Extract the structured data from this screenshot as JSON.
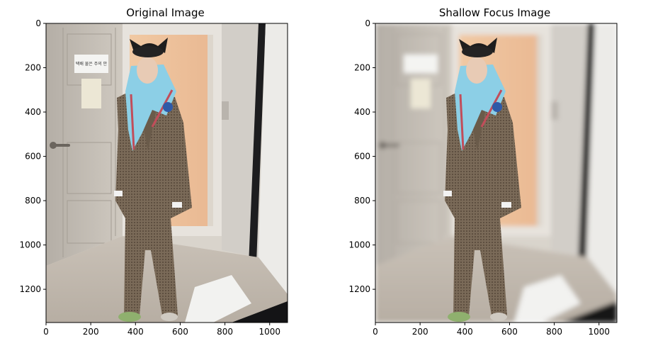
{
  "chart_data": [
    {
      "type": "image",
      "title": "Original Image",
      "xticks": [
        0,
        200,
        400,
        600,
        800,
        1000
      ],
      "yticks": [
        0,
        200,
        400,
        600,
        800,
        1000,
        1200
      ],
      "xlim": [
        0,
        1080
      ],
      "ylim": [
        1350,
        0
      ],
      "grid": false,
      "image_style": "sharp"
    },
    {
      "type": "image",
      "title": "Shallow Focus Image",
      "xticks": [
        0,
        200,
        400,
        600,
        800,
        1000
      ],
      "yticks": [
        0,
        200,
        400,
        600,
        800,
        1000,
        1200
      ],
      "xlim": [
        0,
        1080
      ],
      "ylim": [
        1350,
        0
      ],
      "grid": false,
      "image_style": "background-blurred"
    }
  ],
  "sign_text": "택배 물은 주의 안"
}
